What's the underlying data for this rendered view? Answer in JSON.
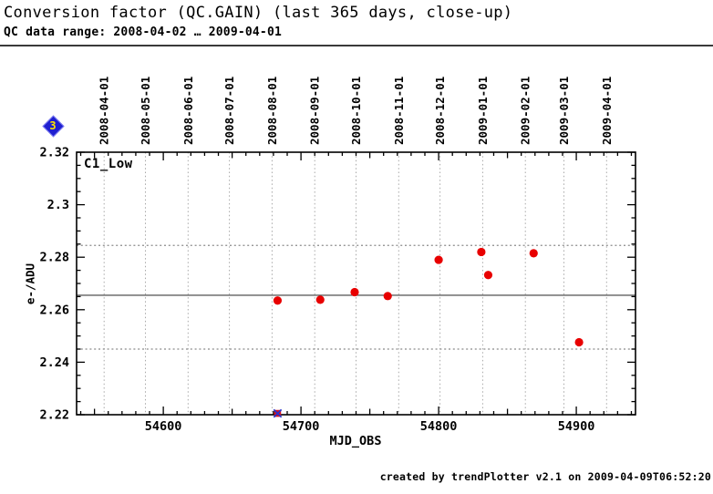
{
  "header": {
    "title": "Conversion factor (QC.GAIN) (last 365 days, close-up)",
    "subtitle": "QC data range: 2008-04-02 … 2009-04-01"
  },
  "nav_icon": {
    "label": "3",
    "shape": "diamond",
    "fill_color": "#1f1fd0",
    "label_color": "#ffe400"
  },
  "footer": {
    "credit": "created by trendPlotter v2.1 on 2009-04-09T06:52:20"
  },
  "chart_data": {
    "type": "scatter",
    "series_label": "C1_Low",
    "xlabel": "MJD_OBS",
    "ylabel": "e-/ADU",
    "xlim": [
      54537,
      54943
    ],
    "ylim": [
      2.22,
      2.32
    ],
    "x_ticks_major": [
      54600,
      54700,
      54800,
      54900
    ],
    "x_minor_step": 10,
    "y_ticks_major": [
      2.22,
      2.24,
      2.26,
      2.28,
      2.3,
      2.32
    ],
    "y_tick_labels": [
      "2.22",
      "2.24",
      "2.26",
      "2.28",
      "2.3",
      "2.32"
    ],
    "y_minor_step": 0.005,
    "top_axis_dates": [
      {
        "label": "2008-04-01",
        "mjd": 54557
      },
      {
        "label": "2008-05-01",
        "mjd": 54587
      },
      {
        "label": "2008-06-01",
        "mjd": 54618
      },
      {
        "label": "2008-07-01",
        "mjd": 54648
      },
      {
        "label": "2008-08-01",
        "mjd": 54679
      },
      {
        "label": "2008-09-01",
        "mjd": 54710
      },
      {
        "label": "2008-10-01",
        "mjd": 54740
      },
      {
        "label": "2008-11-01",
        "mjd": 54771
      },
      {
        "label": "2008-12-01",
        "mjd": 54801
      },
      {
        "label": "2009-01-01",
        "mjd": 54832
      },
      {
        "label": "2009-02-01",
        "mjd": 54863
      },
      {
        "label": "2009-03-01",
        "mjd": 54891
      },
      {
        "label": "2009-04-01",
        "mjd": 54922
      }
    ],
    "points": [
      {
        "x": 54683,
        "y": 2.2635
      },
      {
        "x": 54714,
        "y": 2.2638
      },
      {
        "x": 54739,
        "y": 2.2667
      },
      {
        "x": 54763,
        "y": 2.2652
      },
      {
        "x": 54800,
        "y": 2.279
      },
      {
        "x": 54831,
        "y": 2.282
      },
      {
        "x": 54836,
        "y": 2.2732
      },
      {
        "x": 54869,
        "y": 2.2815
      },
      {
        "x": 54902,
        "y": 2.2476
      }
    ],
    "flagged_points": [
      {
        "x": 54683,
        "y": 2.2205
      }
    ],
    "mean_line": 2.2655,
    "threshold_lines": [
      2.2845,
      2.245
    ],
    "grid": "vertical dotted lines at month boundaries",
    "legend_position": "none",
    "colors": {
      "point": "#e80000",
      "mean_line": "#606060",
      "threshold": "#8a8a8a",
      "grid": "#a8a8a8",
      "frame": "#000000",
      "flag_square": "#d81020",
      "flag_cross": "#2433cc"
    }
  }
}
